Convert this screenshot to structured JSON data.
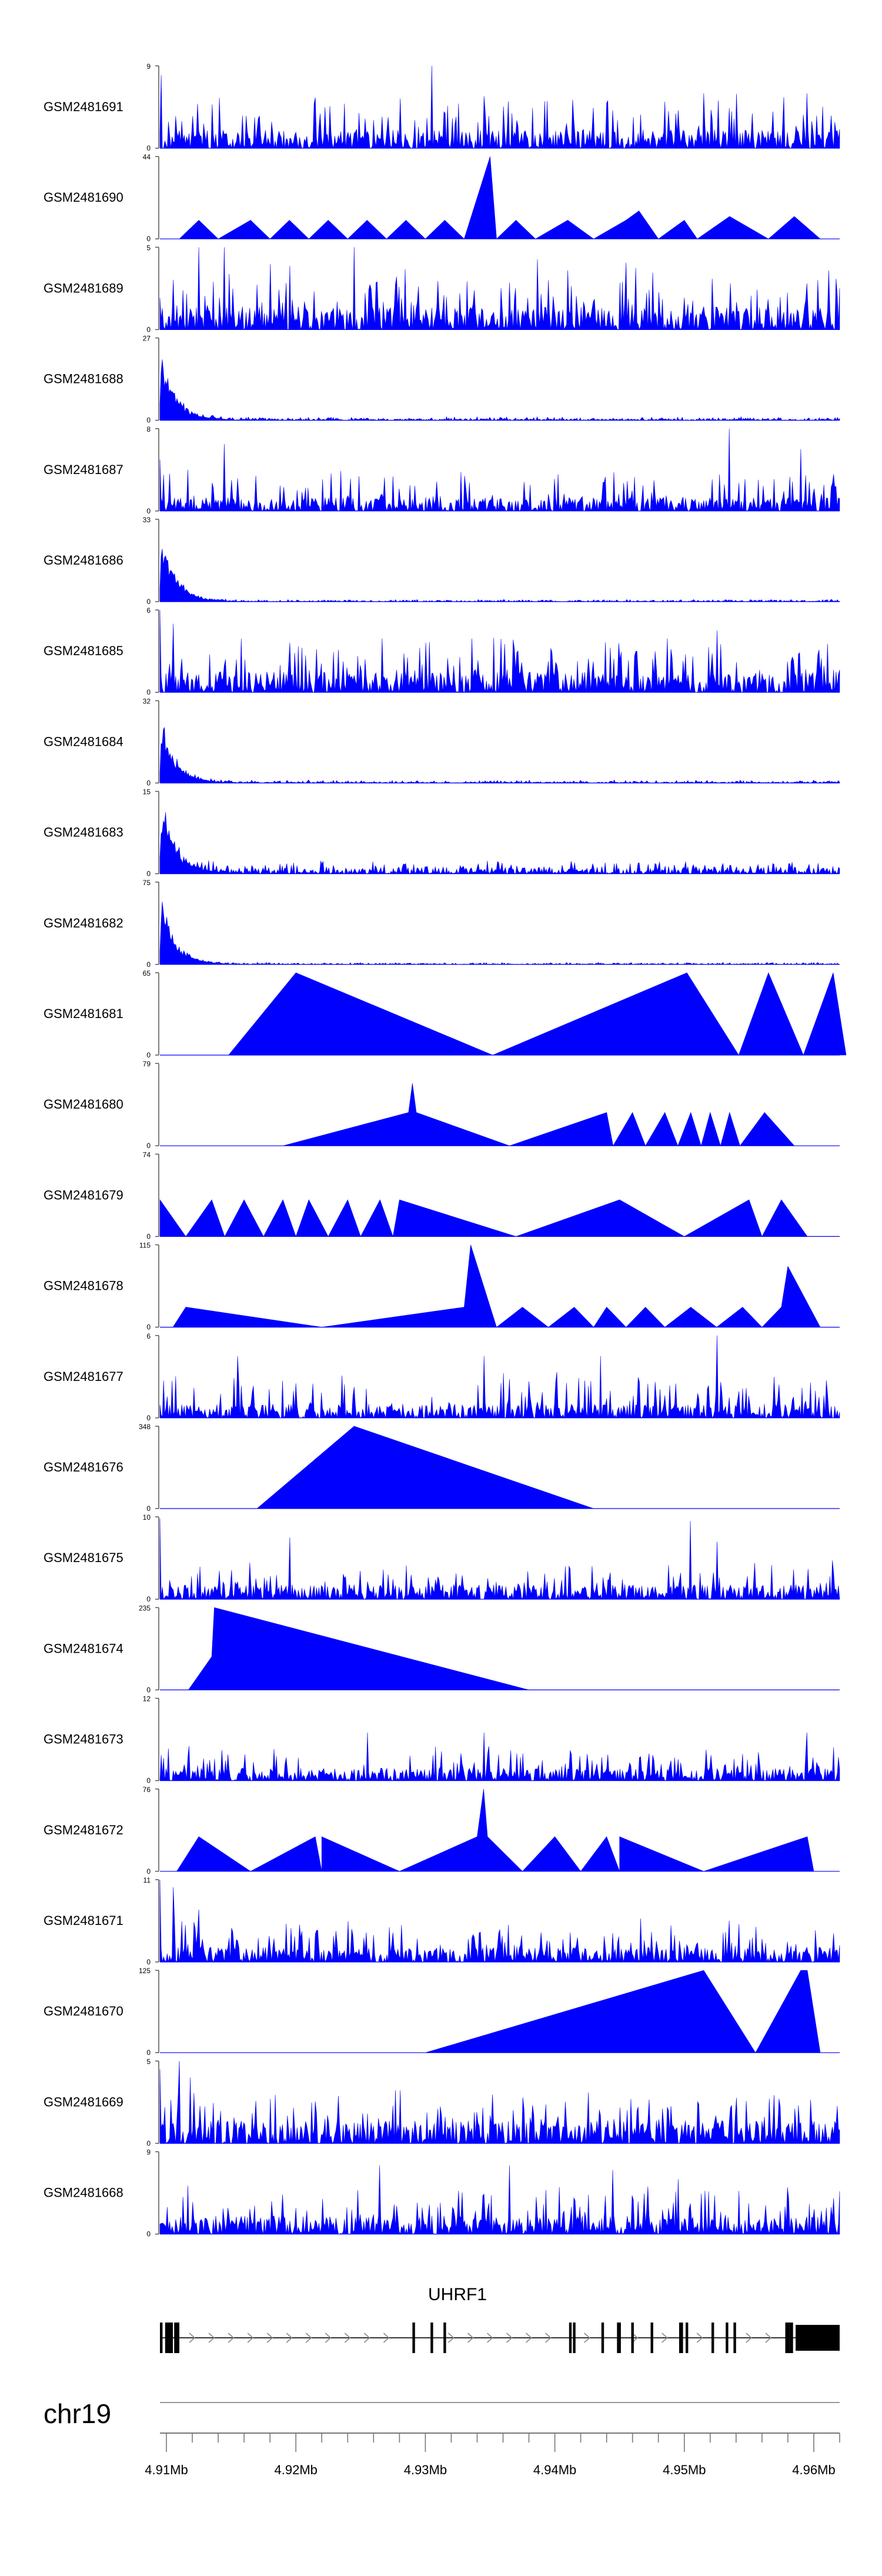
{
  "chart_data": {
    "type": "area",
    "title": "",
    "chromosome": "chr19",
    "gene": "UHRF1",
    "x_range_mb": [
      4.9095,
      4.962
    ],
    "x_ticks": [
      {
        "value": 4.91,
        "label": "4.91Mb"
      },
      {
        "value": 4.92,
        "label": "4.92Mb"
      },
      {
        "value": 4.93,
        "label": "4.93Mb"
      },
      {
        "value": 4.94,
        "label": "4.94Mb"
      },
      {
        "value": 4.95,
        "label": "4.95Mb"
      },
      {
        "value": 4.96,
        "label": "4.96Mb"
      }
    ],
    "series": [
      {
        "name": "GSM2481691",
        "ymax": "9",
        "ylim": [
          0,
          9
        ],
        "pattern": "noise",
        "base": 2.0,
        "spread": 4.5,
        "seed": 11,
        "peaks": [
          [
            4.9096,
            8
          ],
          [
            4.9305,
            9
          ],
          [
            4.9595,
            6
          ]
        ]
      },
      {
        "name": "GSM2481690",
        "ymax": "44",
        "ylim": [
          0,
          44
        ],
        "pattern": "points",
        "points": [
          [
            4.911,
            0
          ],
          [
            4.9125,
            10
          ],
          [
            4.914,
            0
          ],
          [
            4.9165,
            10
          ],
          [
            4.918,
            0
          ],
          [
            4.9195,
            10
          ],
          [
            4.921,
            0
          ],
          [
            4.9225,
            10
          ],
          [
            4.924,
            0
          ],
          [
            4.9255,
            10
          ],
          [
            4.927,
            0
          ],
          [
            4.9285,
            10
          ],
          [
            4.93,
            0
          ],
          [
            4.9315,
            10
          ],
          [
            4.933,
            0
          ],
          [
            4.935,
            44
          ],
          [
            4.9355,
            0
          ],
          [
            4.937,
            10
          ],
          [
            4.9385,
            0
          ],
          [
            4.941,
            10
          ],
          [
            4.943,
            0
          ],
          [
            4.9455,
            10
          ],
          [
            4.9465,
            15
          ],
          [
            4.948,
            0
          ],
          [
            4.95,
            10
          ],
          [
            4.951,
            0
          ],
          [
            4.9535,
            12
          ],
          [
            4.9565,
            0
          ],
          [
            4.9585,
            12
          ],
          [
            4.9605,
            0
          ]
        ]
      },
      {
        "name": "GSM2481689",
        "ymax": "5",
        "ylim": [
          0,
          5
        ],
        "pattern": "noise",
        "base": 1.4,
        "spread": 3.0,
        "seed": 23,
        "peaks": [
          [
            4.9125,
            5
          ],
          [
            4.9145,
            5
          ],
          [
            4.9245,
            5
          ]
        ]
      },
      {
        "name": "GSM2481688",
        "ymax": "27",
        "ylim": [
          0,
          27
        ],
        "pattern": "decay",
        "peak": 27,
        "noise": 1.2,
        "seed": 31
      },
      {
        "name": "GSM2481687",
        "ymax": "8",
        "ylim": [
          0,
          8
        ],
        "pattern": "noise",
        "base": 1.3,
        "spread": 3.0,
        "seed": 37,
        "peaks": [
          [
            4.9095,
            5
          ],
          [
            4.9145,
            6.5
          ],
          [
            4.9535,
            8
          ],
          [
            4.959,
            6
          ]
        ]
      },
      {
        "name": "GSM2481686",
        "ymax": "33",
        "ylim": [
          0,
          33
        ],
        "pattern": "decay",
        "peak": 33,
        "noise": 1.0,
        "seed": 41
      },
      {
        "name": "GSM2481685",
        "ymax": "6",
        "ylim": [
          0,
          6
        ],
        "pattern": "noise",
        "base": 1.5,
        "spread": 2.8,
        "seed": 43,
        "peaks": [
          [
            4.9095,
            6
          ],
          [
            4.9105,
            5
          ],
          [
            4.9525,
            4.5
          ]
        ]
      },
      {
        "name": "GSM2481684",
        "ymax": "32",
        "ylim": [
          0,
          32
        ],
        "pattern": "decay",
        "peak": 30,
        "noise": 1.3,
        "seed": 47
      },
      {
        "name": "GSM2481683",
        "ymax": "15",
        "ylim": [
          0,
          15
        ],
        "pattern": "decay",
        "peak": 15,
        "noise": 2.5,
        "seed": 53
      },
      {
        "name": "GSM2481682",
        "ymax": "75",
        "ylim": [
          0,
          75
        ],
        "pattern": "decay",
        "peak": 70,
        "noise": 2.0,
        "seed": 59
      },
      {
        "name": "GSM2481681",
        "ymax": "65",
        "ylim": [
          0,
          65
        ],
        "pattern": "points",
        "points": [
          [
            4.9148,
            0
          ],
          [
            4.92,
            65
          ],
          [
            4.9352,
            0
          ],
          [
            4.9502,
            65
          ],
          [
            4.9542,
            0
          ],
          [
            4.9565,
            65
          ],
          [
            4.9592,
            0
          ],
          [
            4.9615,
            65
          ],
          [
            4.9625,
            0
          ]
        ]
      },
      {
        "name": "GSM2481680",
        "ymax": "79",
        "ylim": [
          0,
          79
        ],
        "pattern": "points",
        "points": [
          [
            4.919,
            0
          ],
          [
            4.9287,
            32
          ],
          [
            4.929,
            60
          ],
          [
            4.9293,
            32
          ],
          [
            4.9365,
            0
          ],
          [
            4.944,
            32
          ],
          [
            4.9445,
            0
          ],
          [
            4.946,
            32
          ],
          [
            4.947,
            0
          ],
          [
            4.9485,
            32
          ],
          [
            4.9495,
            0
          ],
          [
            4.9505,
            32
          ],
          [
            4.9513,
            0
          ],
          [
            4.952,
            32
          ],
          [
            4.9528,
            0
          ],
          [
            4.9535,
            32
          ],
          [
            4.9543,
            0
          ],
          [
            4.9562,
            32
          ],
          [
            4.9585,
            0
          ]
        ]
      },
      {
        "name": "GSM2481679",
        "ymax": "74",
        "ylim": [
          0,
          74
        ],
        "pattern": "points",
        "points": [
          [
            4.9095,
            33
          ],
          [
            4.9115,
            0
          ],
          [
            4.9135,
            33
          ],
          [
            4.9145,
            0
          ],
          [
            4.916,
            33
          ],
          [
            4.9175,
            0
          ],
          [
            4.919,
            33
          ],
          [
            4.92,
            0
          ],
          [
            4.921,
            33
          ],
          [
            4.9225,
            0
          ],
          [
            4.924,
            33
          ],
          [
            4.925,
            0
          ],
          [
            4.9265,
            33
          ],
          [
            4.9275,
            0
          ],
          [
            4.928,
            33
          ],
          [
            4.937,
            0
          ],
          [
            4.945,
            33
          ],
          [
            4.95,
            0
          ],
          [
            4.955,
            33
          ],
          [
            4.956,
            0
          ],
          [
            4.9575,
            33
          ],
          [
            4.9595,
            0
          ]
        ]
      },
      {
        "name": "GSM2481678",
        "ymax": "115",
        "ylim": [
          0,
          115
        ],
        "pattern": "points",
        "points": [
          [
            4.9105,
            0
          ],
          [
            4.9115,
            28
          ],
          [
            4.922,
            0
          ],
          [
            4.933,
            28
          ],
          [
            4.9335,
            115
          ],
          [
            4.9355,
            0
          ],
          [
            4.9375,
            28
          ],
          [
            4.9395,
            0
          ],
          [
            4.9415,
            28
          ],
          [
            4.943,
            0
          ],
          [
            4.944,
            28
          ],
          [
            4.9455,
            0
          ],
          [
            4.947,
            28
          ],
          [
            4.9485,
            0
          ],
          [
            4.9505,
            28
          ],
          [
            4.9525,
            0
          ],
          [
            4.9545,
            28
          ],
          [
            4.956,
            0
          ],
          [
            4.9575,
            28
          ],
          [
            4.958,
            85
          ],
          [
            4.9605,
            0
          ]
        ]
      },
      {
        "name": "GSM2481677",
        "ymax": "6",
        "ylim": [
          0,
          6
        ],
        "pattern": "noise",
        "base": 1.0,
        "spread": 2.5,
        "seed": 61,
        "peaks": [
          [
            4.9155,
            4.5
          ],
          [
            4.9345,
            4.5
          ],
          [
            4.9435,
            4.5
          ],
          [
            4.9525,
            6
          ]
        ]
      },
      {
        "name": "GSM2481676",
        "ymax": "348",
        "ylim": [
          0,
          348
        ],
        "pattern": "points",
        "points": [
          [
            4.917,
            0
          ],
          [
            4.9245,
            348
          ],
          [
            4.943,
            0
          ]
        ]
      },
      {
        "name": "GSM2481675",
        "ymax": "10",
        "ylim": [
          0,
          10
        ],
        "pattern": "noise",
        "base": 1.8,
        "spread": 3.0,
        "seed": 67,
        "peaks": [
          [
            4.9095,
            9.8
          ],
          [
            4.9195,
            7.5
          ],
          [
            4.9505,
            9.5
          ],
          [
            4.9525,
            7
          ]
        ]
      },
      {
        "name": "GSM2481674",
        "ymax": "235",
        "ylim": [
          0,
          235
        ],
        "pattern": "points",
        "points": [
          [
            4.9117,
            0
          ],
          [
            4.9135,
            95
          ],
          [
            4.9137,
            235
          ],
          [
            4.938,
            0
          ]
        ]
      },
      {
        "name": "GSM2481673",
        "ymax": "12",
        "ylim": [
          0,
          12
        ],
        "pattern": "noise",
        "base": 1.8,
        "spread": 3.5,
        "seed": 71,
        "peaks": [
          [
            4.9255,
            7
          ],
          [
            4.9345,
            7
          ],
          [
            4.9595,
            7
          ]
        ]
      },
      {
        "name": "GSM2481672",
        "ymax": "76",
        "ylim": [
          0,
          76
        ],
        "pattern": "points",
        "points": [
          [
            4.9108,
            0
          ],
          [
            4.9125,
            32
          ],
          [
            4.9165,
            0
          ],
          [
            4.9215,
            32
          ],
          [
            4.922,
            0
          ],
          [
            4.922,
            32
          ],
          [
            4.928,
            0
          ],
          [
            4.934,
            32
          ],
          [
            4.9345,
            76
          ],
          [
            4.9348,
            32
          ],
          [
            4.9375,
            0
          ],
          [
            4.94,
            32
          ],
          [
            4.942,
            0
          ],
          [
            4.944,
            32
          ],
          [
            4.945,
            0
          ],
          [
            4.945,
            32
          ],
          [
            4.9515,
            0
          ],
          [
            4.9595,
            32
          ],
          [
            4.96,
            0
          ]
        ]
      },
      {
        "name": "GSM2481671",
        "ymax": "11",
        "ylim": [
          0,
          11
        ],
        "pattern": "noise",
        "base": 2.0,
        "spread": 4.0,
        "seed": 73,
        "peaks": [
          [
            4.9095,
            11
          ],
          [
            4.9105,
            10
          ],
          [
            4.9125,
            7
          ]
        ]
      },
      {
        "name": "GSM2481670",
        "ymax": "125",
        "ylim": [
          0,
          125
        ],
        "pattern": "points",
        "points": [
          [
            4.93,
            0
          ],
          [
            4.9515,
            125
          ],
          [
            4.9555,
            0
          ],
          [
            4.959,
            125
          ],
          [
            4.9595,
            125
          ],
          [
            4.9605,
            0
          ]
        ]
      },
      {
        "name": "GSM2481669",
        "ymax": "5",
        "ylim": [
          0,
          5
        ],
        "pattern": "noise",
        "base": 1.4,
        "spread": 2.2,
        "seed": 79,
        "peaks": [
          [
            4.9095,
            4.5
          ],
          [
            4.911,
            5
          ],
          [
            4.9118,
            4
          ]
        ]
      },
      {
        "name": "GSM2481668",
        "ymax": "9",
        "ylim": [
          0,
          9
        ],
        "pattern": "noise",
        "base": 2.0,
        "spread": 3.8,
        "seed": 83,
        "peaks": [
          [
            4.9265,
            7.5
          ],
          [
            4.9365,
            7.5
          ],
          [
            4.9445,
            7
          ],
          [
            4.9495,
            6
          ]
        ]
      }
    ],
    "gene_model": {
      "start": 4.9095,
      "end": 4.962,
      "exons": [
        [
          4.9095,
          4.9097
        ],
        [
          4.9099,
          4.9105
        ],
        [
          4.9106,
          4.911
        ],
        [
          4.9107,
          4.911
        ],
        [
          4.929,
          4.9292
        ],
        [
          4.9304,
          4.9306
        ],
        [
          4.9314,
          4.9316
        ],
        [
          4.9411,
          4.9413
        ],
        [
          4.9414,
          4.9416
        ],
        [
          4.9436,
          4.9438
        ],
        [
          4.9448,
          4.9451
        ],
        [
          4.9459,
          4.9461
        ],
        [
          4.9474,
          4.9476
        ],
        [
          4.9496,
          4.9499
        ],
        [
          4.9501,
          4.9503
        ],
        [
          4.9521,
          4.9523
        ],
        [
          4.9532,
          4.9534
        ],
        [
          4.9538,
          4.954
        ],
        [
          4.9578,
          4.9581
        ],
        [
          4.9581,
          4.9584
        ],
        [
          4.9586,
          4.962
        ]
      ],
      "arrows": [
        4.912,
        4.9135,
        4.915,
        4.9165,
        4.918,
        4.9195,
        4.921,
        4.9225,
        4.924,
        4.9255,
        4.927,
        4.932,
        4.9335,
        4.935,
        4.9365,
        4.938,
        4.9395,
        4.9425,
        4.9462,
        4.9485,
        4.9512,
        4.955,
        4.9565
      ]
    }
  }
}
